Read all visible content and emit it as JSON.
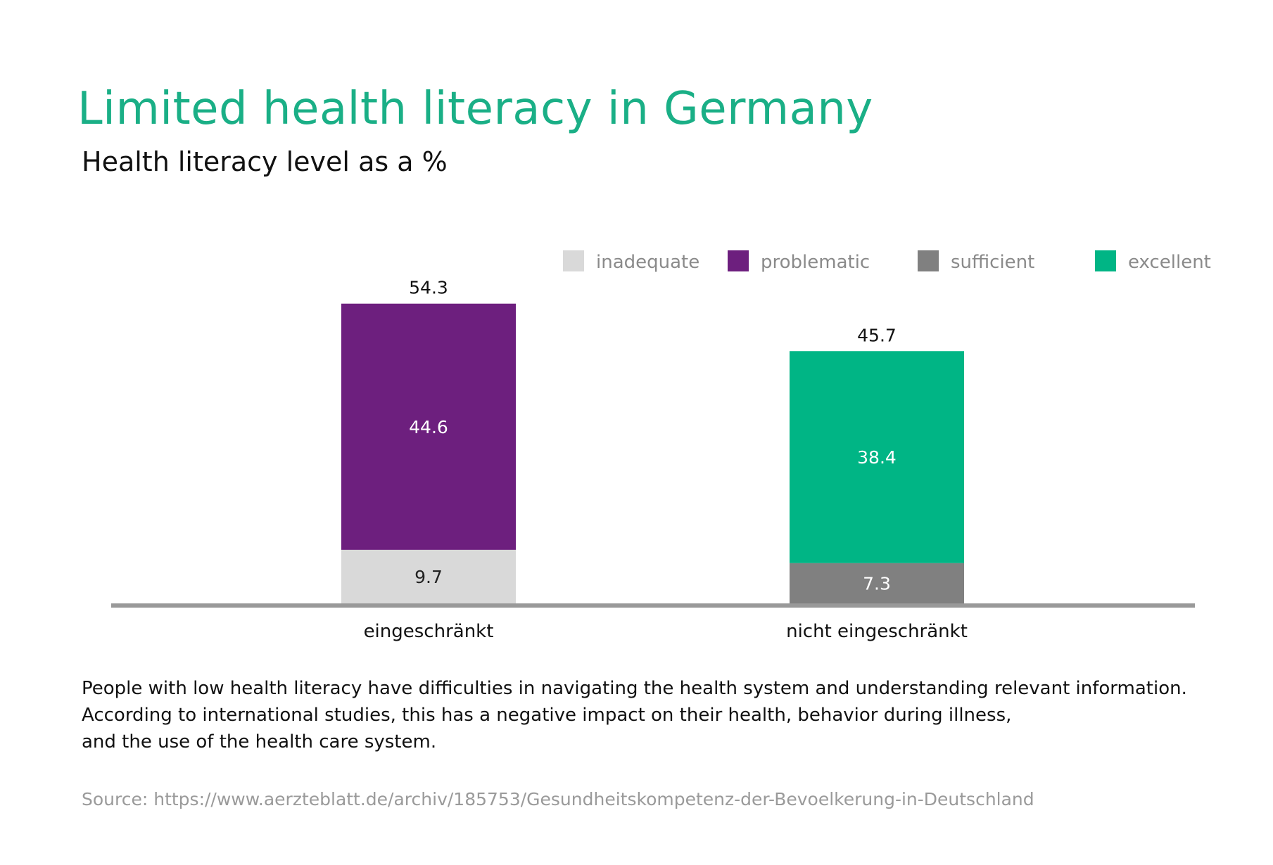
{
  "title": "Limited health literacy in Germany",
  "subtitle": "Health literacy level as a %",
  "chart_data": {
    "type": "bar",
    "stacked": true,
    "categories": [
      "eingeschränkt",
      "nicht eingeschränkt"
    ],
    "series": [
      {
        "name": "inadequate",
        "color": "#d9d9d9",
        "values": [
          9.7,
          null
        ]
      },
      {
        "name": "problematic",
        "color": "#6d1f7e",
        "values": [
          44.6,
          null
        ]
      },
      {
        "name": "sufficient",
        "color": "#808080",
        "values": [
          null,
          7.3
        ]
      },
      {
        "name": "excellent",
        "color": "#00b585",
        "values": [
          null,
          38.4
        ]
      }
    ],
    "totals": [
      54.3,
      45.7
    ],
    "total_labels": [
      "54.3",
      "45.7"
    ],
    "legend_position": "top-right",
    "grid": false,
    "ylim": [
      0,
      60
    ]
  },
  "description": [
    "People with low health literacy have difficulties in navigating the health system and understanding relevant information.",
    "According to international studies, this has a negative impact on their health, behavior during illness,",
    "and the use of the health care system."
  ],
  "source": "Source: https://www.aerzteblatt.de/archiv/185753/Gesundheitskompetenz-der-Bevoelkerung-in-Deutschland"
}
